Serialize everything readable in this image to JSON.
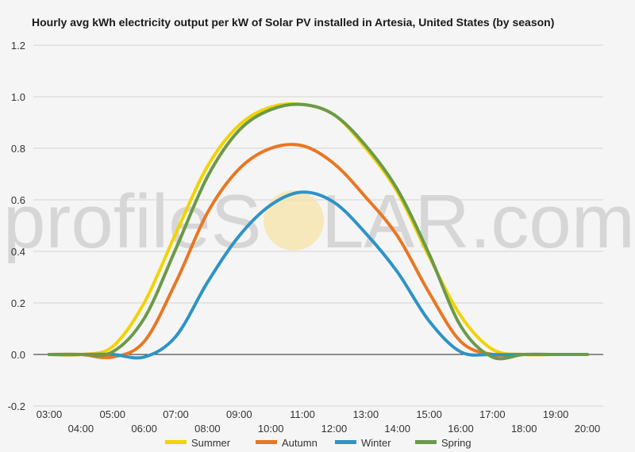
{
  "watermark": {
    "left": "profileS",
    "right": "LAR.com"
  },
  "chart_data": {
    "type": "line",
    "title": "Hourly avg kWh electricity output per kW of Solar PV installed in Artesia, United States (by season)",
    "xlabel": "",
    "ylabel": "",
    "ylim": [
      -0.2,
      1.2
    ],
    "yticks": [
      "1.2",
      "1.0",
      "0.8",
      "0.6",
      "0.4",
      "0.2",
      "0.0",
      "-0.2"
    ],
    "ytick_values": [
      1.2,
      1.0,
      0.8,
      0.6,
      0.4,
      0.2,
      0.0,
      -0.2
    ],
    "categories": [
      "03:00",
      "04:00",
      "05:00",
      "06:00",
      "07:00",
      "08:00",
      "09:00",
      "10:00",
      "11:00",
      "12:00",
      "13:00",
      "14:00",
      "15:00",
      "16:00",
      "17:00",
      "18:00",
      "19:00",
      "20:00"
    ],
    "grid": true,
    "legend_position": "bottom",
    "series": [
      {
        "name": "Summer",
        "color": "#f2d300",
        "values": [
          0.0,
          0.0,
          0.03,
          0.2,
          0.47,
          0.73,
          0.89,
          0.96,
          0.97,
          0.93,
          0.8,
          0.63,
          0.38,
          0.15,
          0.02,
          0.0,
          0.0,
          0.0
        ]
      },
      {
        "name": "Autumn",
        "color": "#e87722",
        "values": [
          0.0,
          0.0,
          -0.01,
          0.05,
          0.28,
          0.55,
          0.72,
          0.8,
          0.81,
          0.74,
          0.61,
          0.46,
          0.24,
          0.05,
          0.0,
          0.0,
          0.0,
          0.0
        ]
      },
      {
        "name": "Winter",
        "color": "#2e93c6",
        "values": [
          0.0,
          0.0,
          0.0,
          -0.01,
          0.07,
          0.28,
          0.46,
          0.58,
          0.63,
          0.59,
          0.47,
          0.32,
          0.13,
          0.01,
          0.0,
          0.0,
          0.0,
          0.0
        ]
      },
      {
        "name": "Spring",
        "color": "#6a9a4a",
        "values": [
          0.0,
          0.0,
          0.01,
          0.14,
          0.41,
          0.69,
          0.87,
          0.95,
          0.97,
          0.93,
          0.81,
          0.64,
          0.39,
          0.11,
          -0.01,
          0.0,
          0.0,
          0.0
        ]
      }
    ]
  }
}
